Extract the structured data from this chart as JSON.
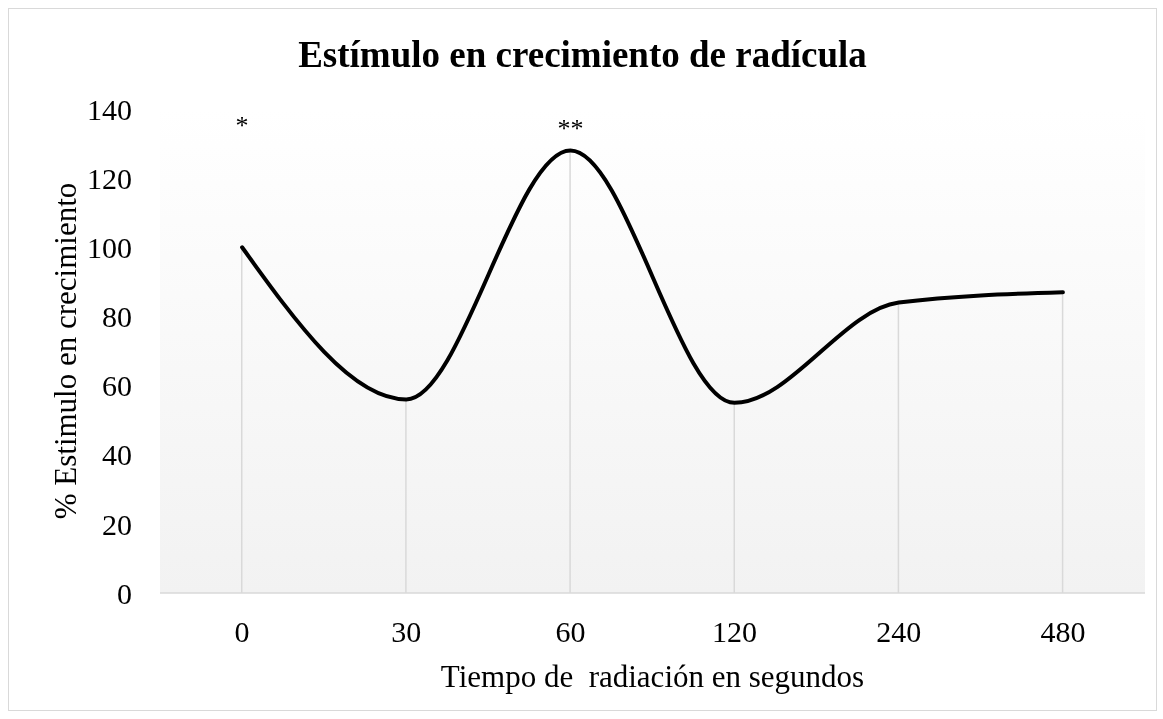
{
  "chart_data": {
    "type": "line",
    "title": "Estímulo en crecimiento de radícula",
    "xlabel": "Tiempo de  radiación en segundos",
    "ylabel": "% Estimulo en crecimiento",
    "categories": [
      "0",
      "30",
      "60",
      "120",
      "240",
      "480"
    ],
    "series": [
      {
        "type": "line",
        "color": "#000000",
        "values": [
          100,
          56,
          128,
          55,
          84,
          87
        ]
      },
      {
        "type": "bar",
        "color": "#d9d9d9",
        "values": [
          100,
          56,
          128,
          55,
          84,
          87
        ]
      }
    ],
    "ylim": [
      0,
      140
    ],
    "yticks": [
      0,
      20,
      40,
      60,
      80,
      100,
      120,
      140
    ],
    "marker": "none",
    "line_style": "solid",
    "annotations": [
      "*",
      {
        "text": "**",
        "x": "60",
        "y": 128
      }
    ]
  }
}
